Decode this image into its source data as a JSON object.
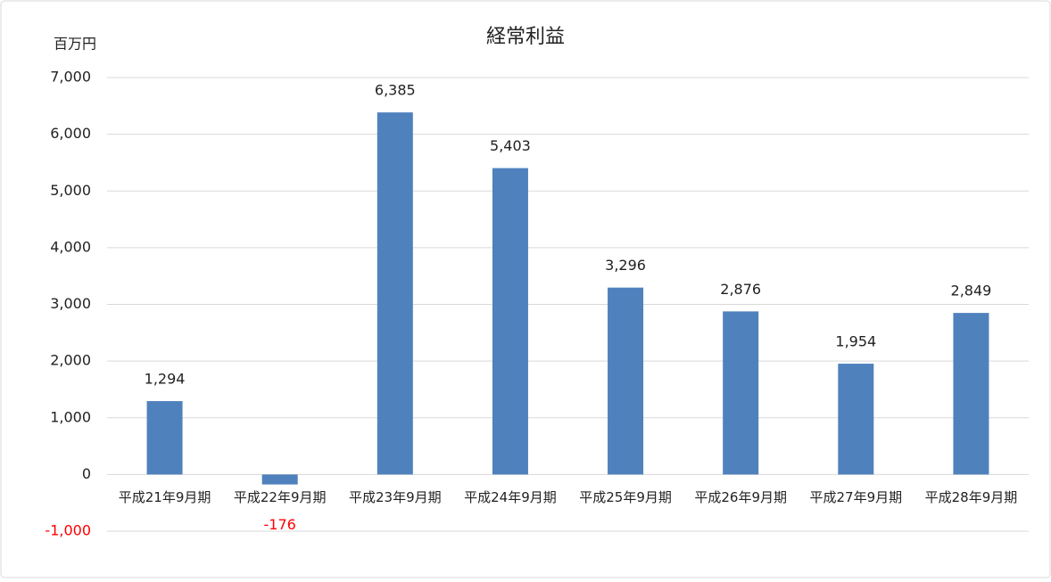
{
  "chart_data": {
    "type": "bar",
    "title": "経常利益",
    "y_label": "百万円",
    "categories": [
      "平成21年9月期",
      "平成22年9月期",
      "平成23年9月期",
      "平成24年9月期",
      "平成25年9月期",
      "平成26年9月期",
      "平成27年9月期",
      "平成28年9月期"
    ],
    "values": [
      1294,
      -176,
      6385,
      5403,
      3296,
      2876,
      1954,
      2849
    ],
    "value_labels": [
      "1,294",
      "-176",
      "6,385",
      "5,403",
      "3,296",
      "2,876",
      "1,954",
      "2,849"
    ],
    "color": "#4f81bd",
    "negative_label_color": "#ff0000",
    "ylim": [
      -1000,
      7000
    ],
    "yticks": [
      {
        "value": -1000,
        "label": "-1,000"
      },
      0,
      {
        "value": 1000,
        "label": "1,000"
      },
      {
        "value": 2000,
        "label": "2,000"
      },
      {
        "value": 3000,
        "label": "3,000"
      },
      {
        "value": 4000,
        "label": "4,000"
      },
      {
        "value": 5000,
        "label": "5,000"
      },
      {
        "value": 6000,
        "label": "6,000"
      },
      {
        "value": 7000,
        "label": "7,000"
      }
    ],
    "grid": true
  }
}
